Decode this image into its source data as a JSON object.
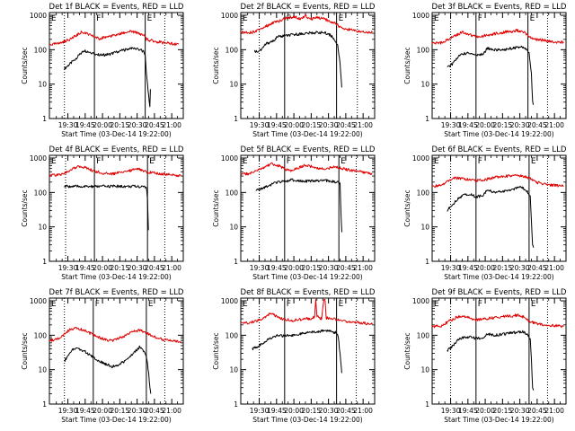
{
  "colors": {
    "events": "#000000",
    "lld": "#e00000",
    "axis": "#000000"
  },
  "shared": {
    "ylabel": "Counts/sec",
    "xlabel": "Start Time (03-Dec-14 19:22:00)",
    "y_ticks": [
      "1",
      "10",
      "100",
      "1000"
    ],
    "x_ticks": [
      "19:30",
      "19:45",
      "20:00",
      "20:15",
      "20:30",
      "20:45",
      "21:00"
    ],
    "flag_labels": [
      "E",
      "F",
      "E"
    ]
  },
  "chart_data": [
    {
      "type": "line",
      "title": "Det 1f BLACK = Events, RED = LLD",
      "xlim_min": [
        -8,
        108
      ],
      "ylim": [
        1,
        1200
      ],
      "y_scale": "log",
      "dotted_x_min": [
        5,
        92
      ],
      "solid_x_min": [
        31,
        75
      ],
      "series": [
        {
          "color": "events",
          "x": [
            5,
            12,
            18,
            22,
            30,
            34,
            38,
            45,
            50,
            55,
            60,
            64,
            68,
            72,
            74,
            75,
            76,
            79,
            79.5,
            80
          ],
          "values": [
            28,
            45,
            70,
            95,
            80,
            72,
            70,
            75,
            85,
            95,
            105,
            110,
            108,
            95,
            85,
            70,
            20,
            2.2,
            7,
            7
          ]
        },
        {
          "color": "lld",
          "x": [
            -8,
            0,
            8,
            14,
            20,
            28,
            35,
            40,
            48,
            55,
            62,
            68,
            74,
            76,
            82,
            90,
            98,
            104
          ],
          "values": [
            140,
            150,
            190,
            240,
            330,
            260,
            210,
            230,
            260,
            300,
            340,
            310,
            260,
            200,
            180,
            160,
            150,
            145
          ]
        }
      ]
    },
    {
      "type": "line",
      "title": "Det 2f BLACK = Events, RED = LLD",
      "xlim_min": [
        -8,
        108
      ],
      "ylim": [
        1,
        1200
      ],
      "y_scale": "log",
      "dotted_x_min": [
        8,
        93
      ],
      "solid_x_min": [
        30,
        75
      ],
      "series": [
        {
          "color": "events",
          "x": [
            4,
            8,
            14,
            20,
            24,
            30,
            40,
            50,
            60,
            66,
            70,
            74,
            76,
            78,
            79.5
          ],
          "values": [
            90,
            90,
            150,
            180,
            240,
            250,
            280,
            300,
            320,
            300,
            260,
            180,
            140,
            40,
            8
          ]
        },
        {
          "color": "lld",
          "x": [
            -8,
            2,
            10,
            16,
            20,
            26,
            32,
            38,
            44,
            48,
            52,
            58,
            64,
            70,
            74,
            78,
            84,
            94,
            106
          ],
          "values": [
            320,
            320,
            420,
            520,
            600,
            700,
            850,
            900,
            800,
            1000,
            750,
            850,
            780,
            650,
            600,
            450,
            400,
            340,
            320
          ]
        }
      ]
    },
    {
      "type": "line",
      "title": "Det 3f BLACK = Events, RED = LLD",
      "xlim_min": [
        -8,
        108
      ],
      "ylim": [
        1,
        1200
      ],
      "y_scale": "log",
      "dotted_x_min": [
        8,
        92
      ],
      "solid_x_min": [
        30,
        75
      ],
      "series": [
        {
          "color": "events",
          "x": [
            5,
            10,
            14,
            18,
            24,
            30,
            36,
            40,
            46,
            52,
            58,
            64,
            70,
            74,
            76,
            78,
            79,
            79.8
          ],
          "values": [
            30,
            40,
            60,
            75,
            80,
            70,
            75,
            110,
            100,
            95,
            105,
            115,
            120,
            100,
            80,
            20,
            3,
            2.5
          ]
        },
        {
          "color": "lld",
          "x": [
            -8,
            0,
            6,
            12,
            18,
            24,
            30,
            36,
            42,
            48,
            54,
            60,
            66,
            72,
            76,
            80,
            88,
            96,
            106
          ],
          "values": [
            150,
            160,
            200,
            260,
            320,
            280,
            240,
            250,
            270,
            300,
            320,
            340,
            360,
            320,
            240,
            200,
            190,
            170,
            160
          ]
        }
      ]
    },
    {
      "type": "line",
      "title": "Det 4f BLACK = Events, RED = LLD",
      "xlim_min": [
        -8,
        108
      ],
      "ylim": [
        1,
        1200
      ],
      "y_scale": "log",
      "dotted_x_min": [
        6,
        92
      ],
      "solid_x_min": [
        31,
        77
      ],
      "series": [
        {
          "color": "events",
          "x": [
            5,
            15,
            25,
            35,
            45,
            55,
            65,
            72,
            76,
            77,
            77.8
          ],
          "values": [
            150,
            150,
            148,
            150,
            152,
            150,
            150,
            148,
            145,
            60,
            8
          ]
        },
        {
          "color": "lld",
          "x": [
            -8,
            0,
            6,
            12,
            18,
            24,
            30,
            36,
            42,
            50,
            58,
            64,
            70,
            76,
            82,
            90,
            98,
            106
          ],
          "values": [
            320,
            320,
            380,
            480,
            580,
            520,
            420,
            380,
            350,
            360,
            400,
            460,
            470,
            400,
            370,
            350,
            320,
            300
          ]
        }
      ]
    },
    {
      "type": "line",
      "title": "Det 5f BLACK = Events, RED = LLD",
      "xlim_min": [
        -8,
        108
      ],
      "ylim": [
        1,
        1200
      ],
      "y_scale": "log",
      "dotted_x_min": [
        8,
        92
      ],
      "solid_x_min": [
        30,
        77
      ],
      "series": [
        {
          "color": "events",
          "x": [
            5,
            10,
            16,
            22,
            30,
            36,
            44,
            52,
            60,
            66,
            72,
            76,
            78,
            79,
            79.6
          ],
          "values": [
            110,
            130,
            160,
            190,
            210,
            230,
            220,
            210,
            220,
            220,
            210,
            200,
            190,
            15,
            7
          ]
        },
        {
          "color": "lld",
          "x": [
            -8,
            0,
            6,
            12,
            18,
            24,
            30,
            36,
            42,
            48,
            54,
            60,
            66,
            72,
            78,
            84,
            92,
            100,
            106
          ],
          "values": [
            340,
            350,
            420,
            520,
            680,
            620,
            480,
            440,
            520,
            620,
            560,
            500,
            480,
            560,
            520,
            460,
            420,
            380,
            350
          ]
        }
      ]
    },
    {
      "type": "line",
      "title": "Det 6f BLACK = Events, RED = LLD",
      "xlim_min": [
        -8,
        108
      ],
      "ylim": [
        1,
        1200
      ],
      "y_scale": "log",
      "dotted_x_min": [
        8,
        92
      ],
      "solid_x_min": [
        30,
        76
      ],
      "series": [
        {
          "color": "events",
          "x": [
            5,
            10,
            14,
            18,
            24,
            30,
            36,
            40,
            46,
            52,
            58,
            64,
            70,
            74,
            77,
            78,
            79,
            79.8
          ],
          "values": [
            30,
            45,
            65,
            80,
            90,
            75,
            80,
            120,
            100,
            105,
            115,
            130,
            140,
            110,
            80,
            15,
            3,
            2.5
          ]
        },
        {
          "color": "lld",
          "x": [
            -8,
            0,
            6,
            12,
            18,
            24,
            30,
            36,
            42,
            48,
            54,
            60,
            66,
            72,
            76,
            82,
            90,
            98,
            106
          ],
          "values": [
            150,
            160,
            220,
            260,
            260,
            230,
            220,
            230,
            250,
            280,
            300,
            300,
            310,
            290,
            260,
            200,
            170,
            160,
            150
          ]
        }
      ]
    },
    {
      "type": "line",
      "title": "Det 7f BLACK = Events, RED = LLD",
      "xlim_min": [
        -8,
        108
      ],
      "ylim": [
        1,
        1200
      ],
      "y_scale": "log",
      "dotted_x_min": [
        5,
        92
      ],
      "solid_x_min": [
        30,
        76
      ],
      "series": [
        {
          "color": "events",
          "x": [
            5,
            8,
            12,
            16,
            22,
            28,
            34,
            40,
            46,
            52,
            58,
            64,
            70,
            74,
            76,
            78,
            79,
            79.8
          ],
          "values": [
            18,
            25,
            40,
            42,
            35,
            25,
            18,
            15,
            12,
            14,
            18,
            28,
            45,
            35,
            25,
            8,
            3,
            2
          ]
        },
        {
          "color": "lld",
          "x": [
            -8,
            -2,
            4,
            10,
            16,
            22,
            28,
            34,
            40,
            46,
            52,
            58,
            64,
            70,
            76,
            82,
            90,
            98,
            106
          ],
          "values": [
            70,
            75,
            100,
            150,
            160,
            140,
            110,
            90,
            75,
            70,
            80,
            100,
            130,
            140,
            120,
            90,
            75,
            70,
            65
          ]
        }
      ]
    },
    {
      "type": "line",
      "title": "Det 8f BLACK = Events, RED = LLD",
      "xlim_min": [
        -8,
        108
      ],
      "ylim": [
        1,
        1200
      ],
      "y_scale": "log",
      "dotted_x_min": [
        8,
        92
      ],
      "solid_x_min": [
        30,
        75
      ],
      "series": [
        {
          "color": "events",
          "x": [
            2,
            8,
            14,
            20,
            26,
            30,
            36,
            44,
            52,
            60,
            66,
            70,
            74,
            76,
            77,
            78,
            79.5
          ],
          "values": [
            40,
            50,
            70,
            90,
            100,
            95,
            100,
            110,
            120,
            130,
            140,
            130,
            120,
            110,
            60,
            30,
            8
          ]
        },
        {
          "color": "lld",
          "x": [
            -8,
            0,
            6,
            12,
            18,
            24,
            30,
            36,
            42,
            48,
            54,
            56,
            57,
            58,
            62,
            64,
            65,
            66,
            72,
            78,
            86,
            96,
            106
          ],
          "values": [
            220,
            230,
            260,
            320,
            450,
            330,
            290,
            270,
            280,
            300,
            310,
            350,
            1100,
            350,
            300,
            1100,
            1100,
            320,
            300,
            270,
            250,
            230,
            210
          ]
        }
      ]
    },
    {
      "type": "line",
      "title": "Det 9f BLACK = Events, RED = LLD",
      "xlim_min": [
        -8,
        108
      ],
      "ylim": [
        1,
        1200
      ],
      "y_scale": "log",
      "dotted_x_min": [
        8,
        92
      ],
      "solid_x_min": [
        30,
        76
      ],
      "series": [
        {
          "color": "events",
          "x": [
            5,
            10,
            14,
            18,
            24,
            30,
            36,
            40,
            46,
            52,
            58,
            64,
            70,
            74,
            77,
            78,
            79,
            79.8
          ],
          "values": [
            35,
            50,
            70,
            85,
            90,
            80,
            85,
            110,
            100,
            105,
            115,
            120,
            130,
            110,
            80,
            20,
            3,
            2.5
          ]
        },
        {
          "color": "lld",
          "x": [
            -8,
            0,
            6,
            12,
            18,
            24,
            30,
            36,
            42,
            48,
            54,
            60,
            66,
            72,
            76,
            82,
            90,
            98,
            106
          ],
          "values": [
            180,
            190,
            250,
            320,
            360,
            320,
            280,
            290,
            310,
            330,
            350,
            360,
            380,
            340,
            260,
            220,
            200,
            190,
            180
          ]
        }
      ]
    }
  ]
}
